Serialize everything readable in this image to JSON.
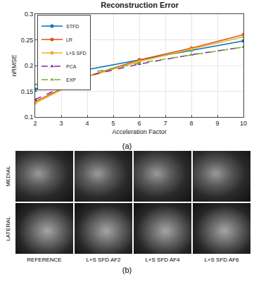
{
  "chart_data": {
    "type": "line",
    "title": "Reconstruction Error",
    "x_label": "Acceleration Factor",
    "y_label": "nRMSE",
    "x": [
      2,
      4,
      6,
      8,
      10
    ],
    "series": [
      {
        "name": "STFD",
        "color": "#0072BD",
        "marker": "circle",
        "line_style": "solid",
        "values": [
          0.154,
          0.192,
          0.211,
          0.23,
          0.248
        ]
      },
      {
        "name": "LR",
        "color": "#D95319",
        "marker": "circle",
        "line_style": "solid",
        "values": [
          0.13,
          0.179,
          0.211,
          0.234,
          0.26
        ]
      },
      {
        "name": "L+S SFD",
        "color": "#EDB120",
        "marker": "circle",
        "line_style": "solid",
        "values": [
          0.127,
          0.178,
          0.208,
          0.232,
          0.256
        ]
      },
      {
        "name": "PCA",
        "color": "#7E2F8E",
        "marker": "triangle-up",
        "line_style": "dash",
        "values": [
          0.134,
          0.18,
          0.203,
          0.221,
          0.236
        ]
      },
      {
        "name": "EXP",
        "color": "#77AC30",
        "marker": "triangle-up",
        "line_style": "dash",
        "values": [
          0.163,
          0.185,
          0.205,
          0.221,
          0.236
        ]
      }
    ],
    "xlim": [
      2,
      10
    ],
    "xticks": [
      2,
      3,
      4,
      5,
      6,
      7,
      8,
      9,
      10
    ],
    "ylim": [
      0.1,
      0.3
    ],
    "yticks": [
      0.1,
      0.15,
      0.2,
      0.25,
      0.3
    ],
    "grid": true,
    "legend": "top-left"
  },
  "figure": {
    "panel_a_label": "(a)",
    "panel_b_label": "(b)",
    "row_labels": [
      "MEDIAL",
      "LATERAL"
    ],
    "column_labels": [
      "REFERENCE",
      "L+S SFD AF2",
      "L+S SFD AF4",
      "L+S SFD AF6"
    ]
  }
}
